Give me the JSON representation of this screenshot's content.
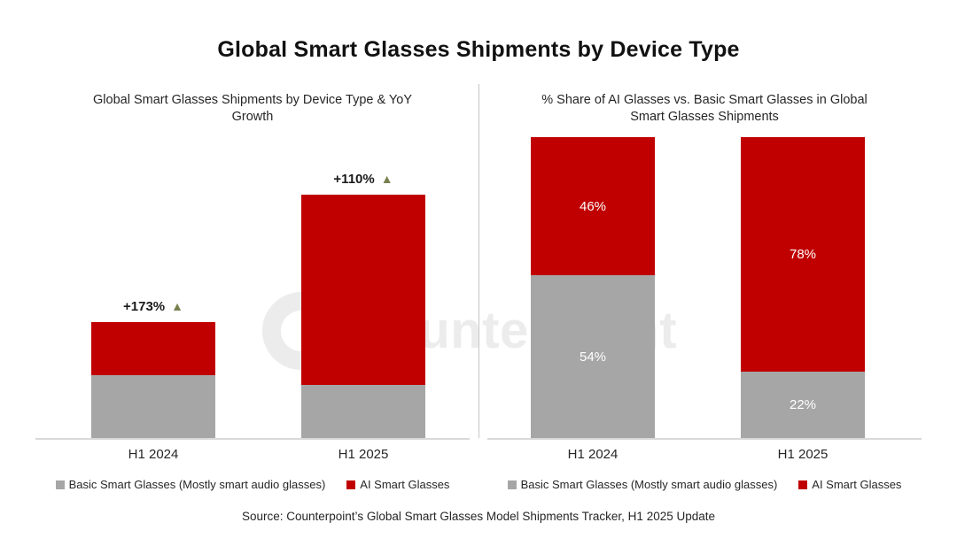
{
  "page": {
    "title": "Global Smart Glasses Shipments by Device Type",
    "source": "Source: Counterpoint’s Global Smart Glasses Model Shipments Tracker, H1 2025 Update",
    "watermark": "Counterpoint"
  },
  "colors": {
    "ai_red": "#C00000",
    "basic_gray": "#A6A6A6",
    "growth_triangle": "#77804F",
    "watermark": "#ECECEC",
    "axis": "#D9D9D9"
  },
  "icons": {
    "growth_arrow": "▲"
  },
  "chart_data": [
    {
      "id": "shipments-by-type",
      "type": "bar",
      "stacked": true,
      "title": "Global Smart Glasses Shipments by Device Type & YoY Growth",
      "categories": [
        "H1 2024",
        "H1 2025"
      ],
      "series": [
        {
          "name": "Basic Smart Glasses (Mostly smart audio glasses)",
          "color": "#A6A6A6",
          "values": [
            54,
            46
          ]
        },
        {
          "name": "AI Smart Glasses",
          "color": "#C00000",
          "values": [
            46,
            164
          ]
        }
      ],
      "value_note": "Y-axis unlabeled; values are indexed units estimated from bar heights with H1 2024 total = 100",
      "annotations": [
        {
          "category": "H1 2024",
          "label": "+173%"
        },
        {
          "category": "H1 2025",
          "label": "+110%"
        }
      ],
      "xlabel": "",
      "ylabel": "",
      "grid": false,
      "legend_position": "bottom"
    },
    {
      "id": "share-of-ai-vs-basic",
      "type": "bar",
      "stacked": true,
      "percent": true,
      "title": "% Share of AI Glasses vs. Basic Smart Glasses in Global Smart Glasses Shipments",
      "categories": [
        "H1 2024",
        "H1 2025"
      ],
      "series": [
        {
          "name": "Basic Smart Glasses (Mostly smart audio glasses)",
          "color": "#A6A6A6",
          "values": [
            54,
            22
          ],
          "labels": [
            "54%",
            "22%"
          ]
        },
        {
          "name": "AI Smart Glasses",
          "color": "#C00000",
          "values": [
            46,
            78
          ],
          "labels": [
            "46%",
            "78%"
          ]
        }
      ],
      "ylim": [
        0,
        100
      ],
      "xlabel": "",
      "ylabel": "",
      "grid": false,
      "legend_position": "bottom"
    }
  ]
}
